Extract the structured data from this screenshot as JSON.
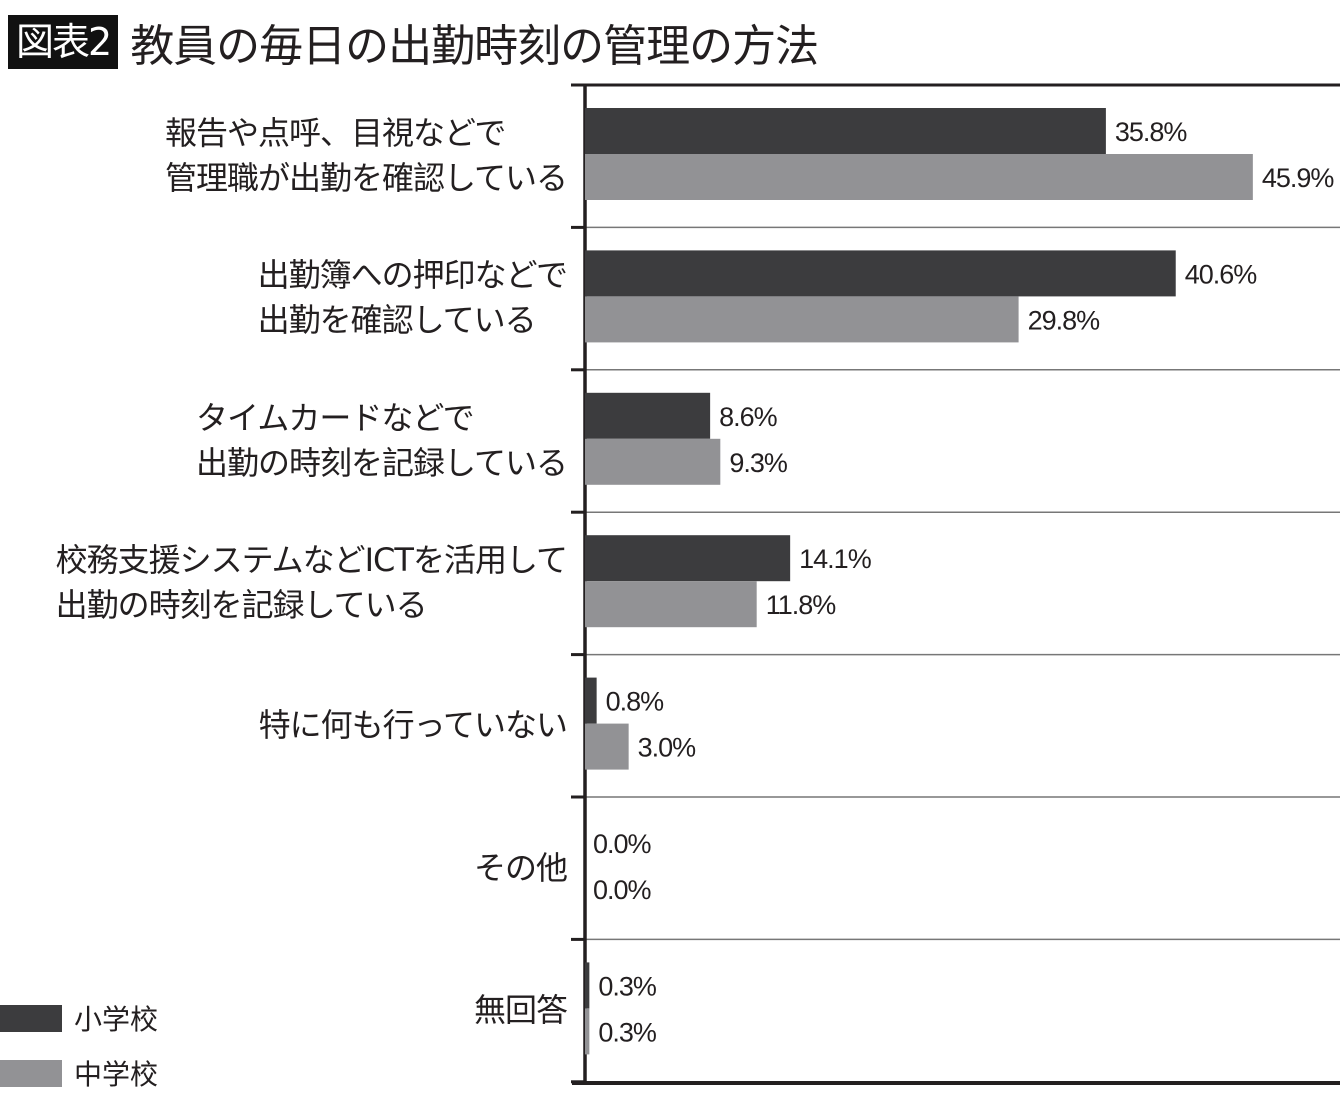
{
  "header": {
    "badge": "図表2",
    "title": "教員の毎日の出勤時刻の管理の方法"
  },
  "chart_data": {
    "type": "bar",
    "orientation": "horizontal",
    "title": "教員の毎日の出勤時刻の管理の方法",
    "categories": [
      [
        "報告や点呼、目視などで",
        "管理職が出勤を確認している"
      ],
      [
        "出勤簿への押印などで",
        "出勤を確認している"
      ],
      [
        "タイムカードなどで",
        "出勤の時刻を記録している"
      ],
      [
        "校務支援システムなどICTを活用して",
        "出勤の時刻を記録している"
      ],
      [
        "特に何も行っていない"
      ],
      [
        "その他"
      ],
      [
        "無回答"
      ]
    ],
    "series": [
      {
        "name": "小学校",
        "color": "#3c3c3e",
        "values": [
          35.8,
          40.6,
          8.6,
          14.1,
          0.8,
          0.0,
          0.3
        ],
        "labels": [
          "35.8%",
          "40.6%",
          "8.6%",
          "14.1%",
          "0.8%",
          "0.0%",
          "0.3%"
        ]
      },
      {
        "name": "中学校",
        "color": "#929295",
        "values": [
          45.9,
          29.8,
          9.3,
          11.8,
          3.0,
          0.0,
          0.3
        ],
        "labels": [
          "45.9%",
          "29.8%",
          "9.3%",
          "11.8%",
          "3.0%",
          "0.0%",
          "0.3%"
        ]
      }
    ],
    "xlim": [
      0,
      46
    ],
    "grid": "horizontal separators",
    "legend_position": "bottom-left"
  }
}
